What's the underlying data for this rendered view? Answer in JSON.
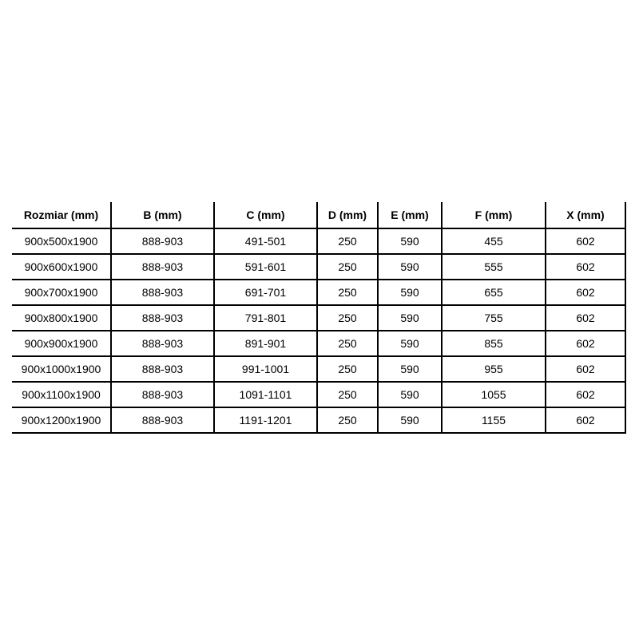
{
  "page": {
    "background": "#ffffff"
  },
  "table": {
    "style": {
      "border_color": "#000000",
      "text_color": "#000000",
      "header_bold": true
    },
    "headers": [
      "Rozmiar (mm)",
      "B (mm)",
      "C (mm)",
      "D (mm)",
      "E (mm)",
      "F (mm)",
      "X (mm)"
    ],
    "rows": [
      [
        "900x500x1900",
        "888-903",
        "491-501",
        "250",
        "590",
        "455",
        "602"
      ],
      [
        "900x600x1900",
        "888-903",
        "591-601",
        "250",
        "590",
        "555",
        "602"
      ],
      [
        "900x700x1900",
        "888-903",
        "691-701",
        "250",
        "590",
        "655",
        "602"
      ],
      [
        "900x800x1900",
        "888-903",
        "791-801",
        "250",
        "590",
        "755",
        "602"
      ],
      [
        "900x900x1900",
        "888-903",
        "891-901",
        "250",
        "590",
        "855",
        "602"
      ],
      [
        "900x1000x1900",
        "888-903",
        "991-1001",
        "250",
        "590",
        "955",
        "602"
      ],
      [
        "900x1100x1900",
        "888-903",
        "1091-1101",
        "250",
        "590",
        "1055",
        "602"
      ],
      [
        "900x1200x1900",
        "888-903",
        "1191-1201",
        "250",
        "590",
        "1155",
        "602"
      ]
    ]
  }
}
